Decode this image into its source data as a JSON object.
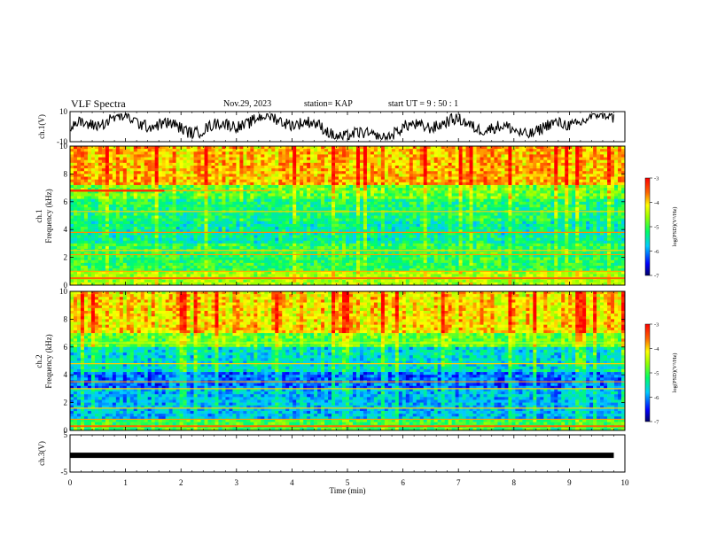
{
  "header": {
    "title": "VLF Spectra",
    "date": "Nov.29, 2023",
    "station": "station= KAP",
    "start": "start  UT  =   9 : 50 : 1"
  },
  "chart_data": [
    {
      "type": "line",
      "title": "",
      "ylabel": "ch.1(V)",
      "ylim": [
        -10,
        10
      ],
      "yticks": [
        "10",
        "-10"
      ],
      "x_range": [
        0,
        10
      ],
      "note": "waveform envelope, roughly -8..8 V"
    },
    {
      "type": "heatmap",
      "ylabel": "ch.1\nFrequency (kHz)",
      "ylim": [
        0,
        10
      ],
      "yticks": [
        "0",
        "2",
        "4",
        "6",
        "8",
        "10"
      ],
      "colorbar": {
        "label": "log(PSD)(V²/Hz)",
        "range": [
          -7,
          -3
        ],
        "ticks": [
          "-3",
          "-4",
          "-5",
          "-6",
          "-7"
        ]
      }
    },
    {
      "type": "heatmap",
      "ylabel": "ch.2\nFrequency (kHz)",
      "ylim": [
        0,
        10
      ],
      "yticks": [
        "0",
        "2",
        "4",
        "6",
        "8",
        "10"
      ],
      "colorbar": {
        "label": "log(PSD)(V²/Hz)",
        "range": [
          -7,
          -3
        ],
        "ticks": [
          "-3",
          "-4",
          "-5",
          "-6",
          "-7"
        ]
      }
    },
    {
      "type": "line",
      "ylabel": "ch.3(V)",
      "ylim": [
        -5,
        5
      ],
      "yticks": [
        "5",
        "-5"
      ],
      "values": [
        -0.5,
        -0.5
      ],
      "x": [
        0,
        9.8
      ]
    }
  ],
  "xaxis": {
    "label": "Time  (min)",
    "range": [
      0,
      10
    ],
    "ticks": [
      "0",
      "1",
      "2",
      "3",
      "4",
      "5",
      "6",
      "7",
      "8",
      "9",
      "10"
    ]
  }
}
